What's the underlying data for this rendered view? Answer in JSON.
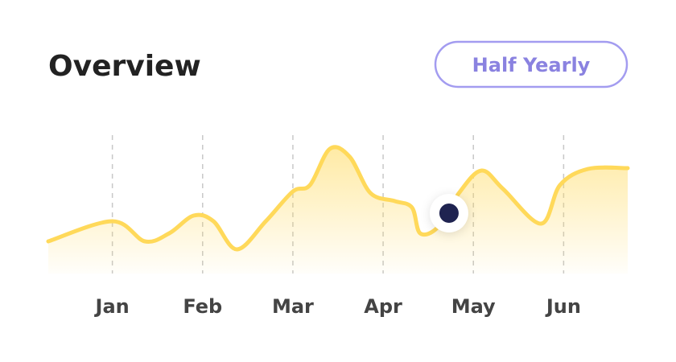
{
  "header": {
    "title": "Overview",
    "button": "Half Yearly"
  },
  "chart_data": {
    "type": "area",
    "x": [
      0.29,
      1.0,
      1.36,
      1.63,
      1.9,
      2.12,
      2.38,
      2.7,
      3.0,
      3.19,
      3.41,
      3.63,
      3.86,
      4.13,
      4.32,
      4.41,
      4.61,
      4.84,
      5.09,
      5.33,
      5.75,
      5.96,
      6.27,
      6.71
    ],
    "values": [
      20,
      32.5,
      20,
      25,
      36,
      32.5,
      15,
      32.5,
      51,
      55,
      77.5,
      72.5,
      50,
      45,
      41,
      25,
      29,
      50,
      64,
      52.5,
      31,
      55,
      65,
      65.5
    ],
    "color": "#ffd95a",
    "highlight": {
      "x": 4.73,
      "y": 37.5,
      "color": "#1f2350"
    },
    "xlim": [
      0.29,
      6.71
    ],
    "ylim": [
      0,
      100
    ],
    "xticks": [
      {
        "value": 1,
        "label": "Jan"
      },
      {
        "value": 2,
        "label": "Feb"
      },
      {
        "value": 3,
        "label": "Mar"
      },
      {
        "value": 4,
        "label": "Apr"
      },
      {
        "value": 5,
        "label": "May"
      },
      {
        "value": 6,
        "label": "Jun"
      }
    ],
    "grid": true
  }
}
